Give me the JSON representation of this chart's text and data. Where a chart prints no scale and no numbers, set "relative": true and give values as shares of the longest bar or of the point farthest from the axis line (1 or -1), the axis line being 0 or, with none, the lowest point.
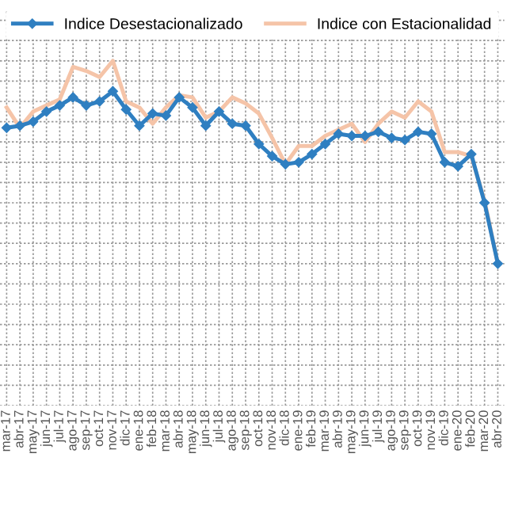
{
  "chart_data": {
    "type": "line",
    "relative": true,
    "grid": true,
    "legend": "top",
    "categories": [
      "mar-17",
      "abr-17",
      "may-17",
      "jun-17",
      "jul-17",
      "ago-17",
      "sep-17",
      "oct-17",
      "nov-17",
      "dic-17",
      "ene-18",
      "feb-18",
      "mar-18",
      "abr-18",
      "may-18",
      "jun-18",
      "jul-18",
      "ago-18",
      "sep-18",
      "oct-18",
      "nov-18",
      "dic-18",
      "ene-19",
      "feb-19",
      "mar-19",
      "abr-19",
      "may-19",
      "jun-19",
      "jul-19",
      "ago-19",
      "sep-19",
      "oct-19",
      "nov-19",
      "dic-19",
      "ene-20",
      "feb-20",
      "mar-20",
      "abr-20"
    ],
    "series": [
      {
        "name": "Indice Desestacionalizado",
        "color": "#2f7fc1",
        "marker": "diamond",
        "values": [
          0.67,
          0.68,
          0.7,
          0.75,
          0.78,
          0.82,
          0.78,
          0.8,
          0.85,
          0.76,
          0.68,
          0.74,
          0.73,
          0.82,
          0.77,
          0.68,
          0.75,
          0.69,
          0.68,
          0.59,
          0.53,
          0.49,
          0.5,
          0.54,
          0.59,
          0.64,
          0.63,
          0.63,
          0.65,
          0.62,
          0.61,
          0.65,
          0.64,
          0.5,
          0.48,
          0.54,
          0.3,
          0
        ]
      },
      {
        "name": "Indice con Estacionalidad",
        "color": "#f5c4a8",
        "marker": "none",
        "values": [
          0.77,
          0.67,
          0.75,
          0.78,
          0.81,
          0.97,
          0.95,
          0.92,
          1,
          0.8,
          0.77,
          0.69,
          0.77,
          0.83,
          0.82,
          0.72,
          0.75,
          0.82,
          0.79,
          0.74,
          0.62,
          0.49,
          0.58,
          0.58,
          0.63,
          0.66,
          0.69,
          0.6,
          0.69,
          0.75,
          0.72,
          0.8,
          0.75,
          0.55,
          0.55,
          0.53,
          0.31,
          0
        ]
      }
    ]
  }
}
